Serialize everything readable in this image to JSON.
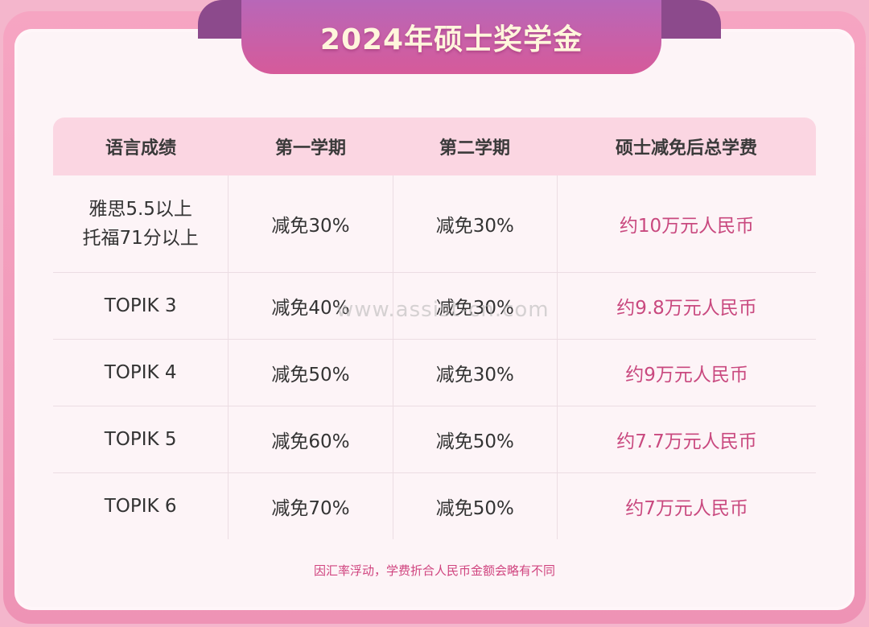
{
  "title": "2024年硕士奖学金",
  "table": {
    "headers": [
      "语言成绩",
      "第一学期",
      "第二学期",
      "硕士减免后总学费"
    ],
    "rows": [
      {
        "score_line1": "雅思5.5以上",
        "score_line2": "托福71分以上",
        "sem1": "减免30%",
        "sem2": "减免30%",
        "total": "约10万元人民币"
      },
      {
        "score_line1": "TOPIK 3",
        "score_line2": "",
        "sem1": "减免40%",
        "sem2": "减免30%",
        "total": "约9.8万元人民币"
      },
      {
        "score_line1": "TOPIK 4",
        "score_line2": "",
        "sem1": "减免50%",
        "sem2": "减免30%",
        "total": "约9万元人民币"
      },
      {
        "score_line1": "TOPIK 5",
        "score_line2": "",
        "sem1": "减免60%",
        "sem2": "减免50%",
        "total": "约7.7万元人民币"
      },
      {
        "score_line1": "TOPIK 6",
        "score_line2": "",
        "sem1": "减免70%",
        "sem2": "减免50%",
        "total": "约7万元人民币"
      }
    ]
  },
  "watermark": "www.assist-cn.com",
  "footnote": "因汇率浮动，学费折合人民币金额会略有不同"
}
